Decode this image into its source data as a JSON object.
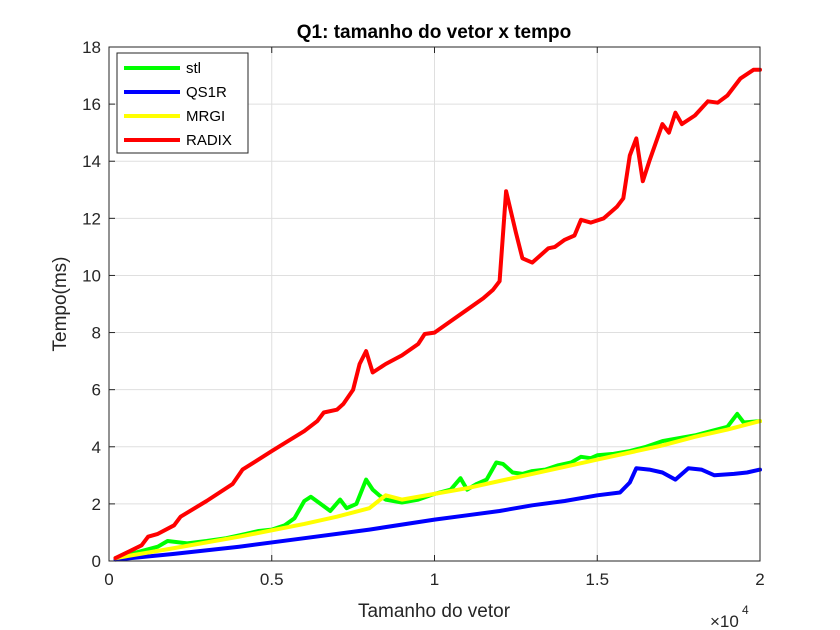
{
  "chart_data": {
    "type": "line",
    "title": "Q1: tamanho do vetor x tempo",
    "xlabel": "Tamanho do vetor",
    "ylabel": "Tempo(ms)",
    "x_exponent": {
      "base": "×10",
      "power": "4"
    },
    "xlim": [
      0,
      20000
    ],
    "ylim": [
      0,
      18
    ],
    "xticks": [
      0,
      5000,
      10000,
      15000,
      20000
    ],
    "xtick_labels": [
      "0",
      "0.5",
      "1",
      "1.5",
      "2"
    ],
    "yticks": [
      0,
      2,
      4,
      6,
      8,
      10,
      12,
      14,
      16,
      18
    ],
    "ytick_labels": [
      "0",
      "2",
      "4",
      "6",
      "8",
      "10",
      "12",
      "14",
      "16",
      "18"
    ],
    "grid": true,
    "legend_position": "top-left",
    "series": [
      {
        "name": "stl",
        "color": "#00ff00",
        "points": [
          [
            200,
            0.1
          ],
          [
            1000,
            0.35
          ],
          [
            1500,
            0.5
          ],
          [
            1800,
            0.7
          ],
          [
            2400,
            0.62
          ],
          [
            3000,
            0.7
          ],
          [
            3600,
            0.8
          ],
          [
            4200,
            0.95
          ],
          [
            4600,
            1.05
          ],
          [
            5000,
            1.1
          ],
          [
            5400,
            1.25
          ],
          [
            5700,
            1.5
          ],
          [
            6000,
            2.1
          ],
          [
            6200,
            2.25
          ],
          [
            6500,
            2.0
          ],
          [
            6800,
            1.75
          ],
          [
            7100,
            2.15
          ],
          [
            7300,
            1.85
          ],
          [
            7600,
            2.0
          ],
          [
            7900,
            2.85
          ],
          [
            8100,
            2.5
          ],
          [
            8300,
            2.3
          ],
          [
            8500,
            2.15
          ],
          [
            9000,
            2.05
          ],
          [
            9500,
            2.15
          ],
          [
            10000,
            2.35
          ],
          [
            10500,
            2.5
          ],
          [
            10800,
            2.9
          ],
          [
            11000,
            2.5
          ],
          [
            11300,
            2.7
          ],
          [
            11600,
            2.85
          ],
          [
            11900,
            3.45
          ],
          [
            12100,
            3.4
          ],
          [
            12400,
            3.1
          ],
          [
            12700,
            3.05
          ],
          [
            13000,
            3.15
          ],
          [
            13400,
            3.2
          ],
          [
            13800,
            3.35
          ],
          [
            14200,
            3.45
          ],
          [
            14500,
            3.65
          ],
          [
            14800,
            3.6
          ],
          [
            15000,
            3.7
          ],
          [
            15500,
            3.75
          ],
          [
            16000,
            3.85
          ],
          [
            16500,
            4.0
          ],
          [
            17000,
            4.2
          ],
          [
            17500,
            4.3
          ],
          [
            18000,
            4.4
          ],
          [
            18500,
            4.55
          ],
          [
            19000,
            4.7
          ],
          [
            19300,
            5.15
          ],
          [
            19500,
            4.85
          ],
          [
            20000,
            4.9
          ]
        ]
      },
      {
        "name": "QS1R",
        "color": "#0000ff",
        "points": [
          [
            200,
            0.05
          ],
          [
            2000,
            0.25
          ],
          [
            4000,
            0.5
          ],
          [
            6000,
            0.8
          ],
          [
            8000,
            1.1
          ],
          [
            10000,
            1.45
          ],
          [
            11000,
            1.6
          ],
          [
            12000,
            1.75
          ],
          [
            13000,
            1.95
          ],
          [
            14000,
            2.1
          ],
          [
            15000,
            2.3
          ],
          [
            15700,
            2.4
          ],
          [
            16000,
            2.75
          ],
          [
            16200,
            3.25
          ],
          [
            16600,
            3.2
          ],
          [
            17000,
            3.1
          ],
          [
            17400,
            2.85
          ],
          [
            17800,
            3.25
          ],
          [
            18200,
            3.2
          ],
          [
            18600,
            3.0
          ],
          [
            19200,
            3.05
          ],
          [
            19600,
            3.1
          ],
          [
            20000,
            3.2
          ]
        ]
      },
      {
        "name": "MRGI",
        "color": "#ffff00",
        "points": [
          [
            200,
            0.1
          ],
          [
            2000,
            0.45
          ],
          [
            4000,
            0.85
          ],
          [
            6000,
            1.3
          ],
          [
            7000,
            1.55
          ],
          [
            8000,
            1.85
          ],
          [
            8500,
            2.3
          ],
          [
            9000,
            2.15
          ],
          [
            10000,
            2.35
          ],
          [
            11000,
            2.55
          ],
          [
            12000,
            2.8
          ],
          [
            13000,
            3.05
          ],
          [
            14000,
            3.3
          ],
          [
            15000,
            3.55
          ],
          [
            16000,
            3.8
          ],
          [
            17000,
            4.05
          ],
          [
            18000,
            4.35
          ],
          [
            19000,
            4.6
          ],
          [
            20000,
            4.9
          ]
        ]
      },
      {
        "name": "RADIX",
        "color": "#ff0000",
        "points": [
          [
            200,
            0.1
          ],
          [
            1000,
            0.55
          ],
          [
            1200,
            0.85
          ],
          [
            1500,
            0.95
          ],
          [
            2000,
            1.25
          ],
          [
            2200,
            1.55
          ],
          [
            3000,
            2.1
          ],
          [
            3800,
            2.7
          ],
          [
            4100,
            3.2
          ],
          [
            5000,
            3.85
          ],
          [
            5500,
            4.2
          ],
          [
            6000,
            4.55
          ],
          [
            6400,
            4.9
          ],
          [
            6600,
            5.2
          ],
          [
            7000,
            5.3
          ],
          [
            7200,
            5.5
          ],
          [
            7500,
            6.0
          ],
          [
            7700,
            6.9
          ],
          [
            7900,
            7.35
          ],
          [
            8100,
            6.6
          ],
          [
            8500,
            6.9
          ],
          [
            9000,
            7.2
          ],
          [
            9500,
            7.6
          ],
          [
            9700,
            7.95
          ],
          [
            10000,
            8.0
          ],
          [
            10500,
            8.4
          ],
          [
            11000,
            8.8
          ],
          [
            11500,
            9.2
          ],
          [
            11800,
            9.5
          ],
          [
            12000,
            9.8
          ],
          [
            12200,
            12.95
          ],
          [
            12500,
            11.5
          ],
          [
            12700,
            10.6
          ],
          [
            13000,
            10.45
          ],
          [
            13500,
            10.95
          ],
          [
            13700,
            11.0
          ],
          [
            14000,
            11.25
          ],
          [
            14300,
            11.4
          ],
          [
            14500,
            11.95
          ],
          [
            14800,
            11.85
          ],
          [
            15200,
            12.0
          ],
          [
            15600,
            12.4
          ],
          [
            15800,
            12.7
          ],
          [
            16000,
            14.2
          ],
          [
            16200,
            14.8
          ],
          [
            16400,
            13.3
          ],
          [
            16600,
            14.0
          ],
          [
            17000,
            15.3
          ],
          [
            17200,
            15.0
          ],
          [
            17400,
            15.7
          ],
          [
            17600,
            15.3
          ],
          [
            18000,
            15.6
          ],
          [
            18400,
            16.1
          ],
          [
            18700,
            16.05
          ],
          [
            19000,
            16.3
          ],
          [
            19400,
            16.9
          ],
          [
            19800,
            17.2
          ],
          [
            20000,
            17.2
          ]
        ]
      }
    ]
  }
}
